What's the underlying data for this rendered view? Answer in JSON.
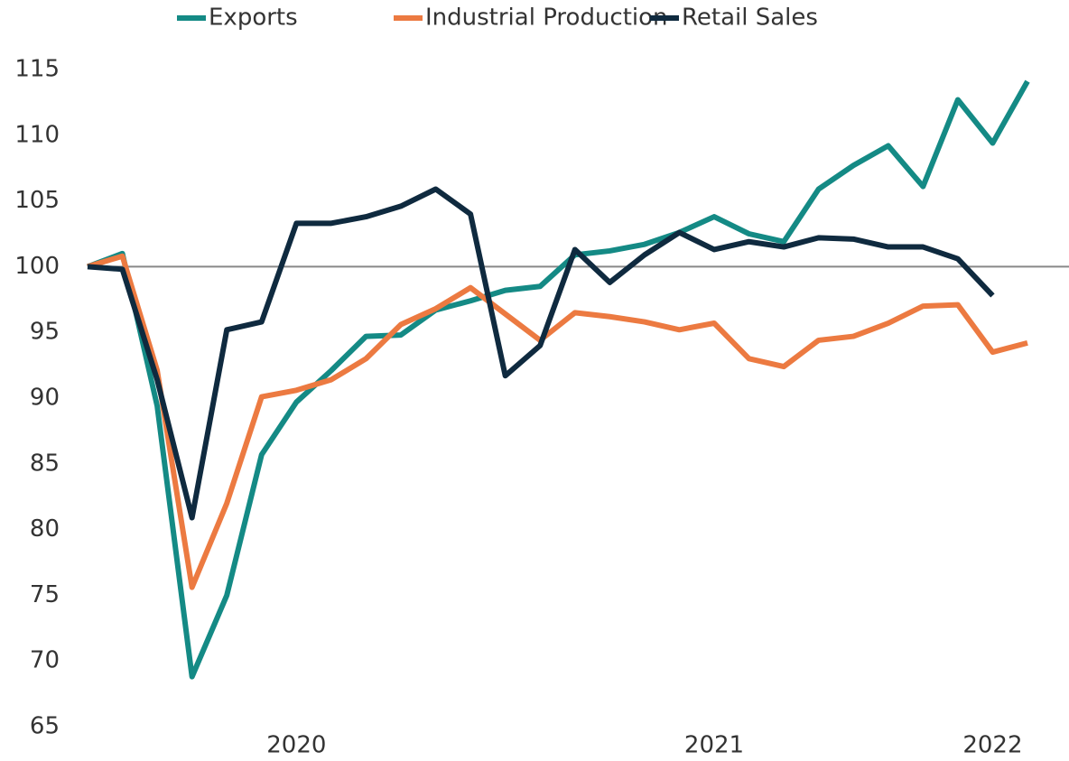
{
  "chart_data": {
    "type": "line",
    "categories": [
      null,
      null,
      null,
      null,
      null,
      null,
      "2020",
      null,
      null,
      null,
      null,
      null,
      null,
      null,
      null,
      null,
      null,
      null,
      "2021",
      null,
      null,
      null,
      null,
      null,
      null,
      null,
      "2022",
      null
    ],
    "series": [
      {
        "name": "Exports",
        "color": "#148a85",
        "values": [
          100,
          101,
          89.4,
          68.8,
          75,
          85.7,
          89.7,
          92.1,
          94.7,
          94.8,
          96.7,
          97.4,
          98.2,
          98.5,
          100.9,
          101.2,
          101.7,
          102.6,
          103.8,
          102.5,
          101.9,
          105.9,
          107.7,
          109.2,
          106.1,
          112.7,
          109.4,
          114.1
        ]
      },
      {
        "name": "Industrial Production",
        "color": "#ec7a41",
        "values": [
          100,
          100.8,
          92.1,
          75.6,
          82,
          90.1,
          90.6,
          91.4,
          93,
          95.6,
          96.8,
          98.4,
          96.4,
          94.4,
          96.5,
          96.2,
          95.8,
          95.2,
          95.7,
          93,
          92.4,
          94.4,
          94.7,
          95.7,
          97,
          97.1,
          93.5,
          94.2
        ]
      },
      {
        "name": "Retail Sales",
        "color": "#0f2a3f",
        "values": [
          100,
          99.8,
          91.4,
          80.9,
          95.2,
          95.8,
          103.3,
          103.3,
          103.8,
          104.6,
          105.9,
          104,
          91.7,
          94,
          101.3,
          98.8,
          100.9,
          102.6,
          101.3,
          101.9,
          101.5,
          102.2,
          102.1,
          101.5,
          101.5,
          100.6,
          97.8,
          null
        ]
      }
    ],
    "ylim": [
      65,
      115
    ],
    "yticks": [
      65,
      70,
      75,
      80,
      85,
      90,
      95,
      100,
      105,
      110,
      115
    ],
    "reference_line": 100,
    "legend": "top"
  }
}
